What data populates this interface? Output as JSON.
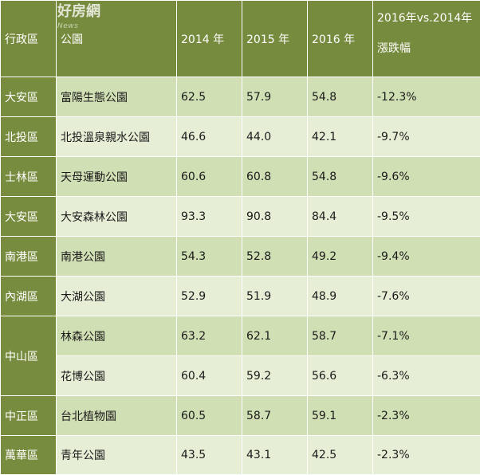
{
  "watermark": {
    "brand": "好房網",
    "sub": "News"
  },
  "table": {
    "headers": [
      "行政區",
      "公園",
      "2014 年",
      "2015 年",
      "2016 年"
    ],
    "change_header": {
      "line1": "2016年vs.2014年",
      "line2": "漲跌幅"
    },
    "rows": [
      {
        "district": "大安區",
        "park": "富陽生態公園",
        "y2014": "62.5",
        "y2015": "57.9",
        "y2016": "54.8",
        "change": "-12.3%"
      },
      {
        "district": "北投區",
        "park": "北投溫泉親水公園",
        "y2014": "46.6",
        "y2015": "44.0",
        "y2016": "42.1",
        "change": "-9.7%"
      },
      {
        "district": "士林區",
        "park": "天母運動公園",
        "y2014": "60.6",
        "y2015": "60.8",
        "y2016": "54.8",
        "change": "-9.6%"
      },
      {
        "district": "大安區",
        "park": "大安森林公園",
        "y2014": "93.3",
        "y2015": "90.8",
        "y2016": "84.4",
        "change": "-9.5%"
      },
      {
        "district": "南港區",
        "park": "南港公園",
        "y2014": "54.3",
        "y2015": "52.8",
        "y2016": "49.2",
        "change": "-9.4%"
      },
      {
        "district": "內湖區",
        "park": "大湖公園",
        "y2014": "52.9",
        "y2015": "51.9",
        "y2016": "48.9",
        "change": "-7.6%"
      },
      {
        "district": "中山區",
        "park": "林森公園",
        "y2014": "63.2",
        "y2015": "62.1",
        "y2016": "58.7",
        "change": "-7.1%"
      },
      {
        "district": "",
        "park": "花博公園",
        "y2014": "60.4",
        "y2015": "59.2",
        "y2016": "56.6",
        "change": "-6.3%"
      },
      {
        "district": "中正區",
        "park": "台北植物園",
        "y2014": "60.5",
        "y2015": "58.7",
        "y2016": "59.1",
        "change": "-2.3%"
      },
      {
        "district": "萬華區",
        "park": "青年公園",
        "y2014": "43.5",
        "y2015": "43.1",
        "y2016": "42.5",
        "change": "-2.3%"
      }
    ]
  },
  "colors": {
    "header_bg": "#778b3e",
    "district_bg": "#788c3f",
    "row_band_a": "#d1dfb4",
    "row_band_b": "#e6eed6"
  }
}
